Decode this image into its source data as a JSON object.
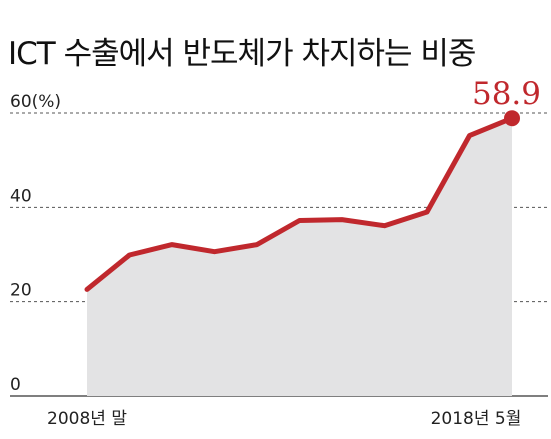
{
  "title": "ICT 수출에서 반도체가 차지하는 비중",
  "chart_data": {
    "type": "area",
    "title": "ICT 수출에서 반도체가 차지하는 비중",
    "ylabel": "(%)",
    "ylim": [
      0,
      60
    ],
    "yticks": [
      0,
      20,
      40,
      60
    ],
    "ytick_labels": [
      "0",
      "20",
      "40",
      "60(%)"
    ],
    "xtick_labels": [
      "2008년 말",
      "2018년 5월"
    ],
    "grid": true,
    "values": [
      22.6,
      29.9,
      32.1,
      30.6,
      32.1,
      37.2,
      37.4,
      36.1,
      39.0,
      55.2,
      58.9
    ],
    "callout": {
      "label": "58.9",
      "value": 58.9
    },
    "colors": {
      "line": "#c0282d",
      "fill": "#e3e3e4",
      "grid": "#555555",
      "callout": "#c0282d"
    }
  }
}
